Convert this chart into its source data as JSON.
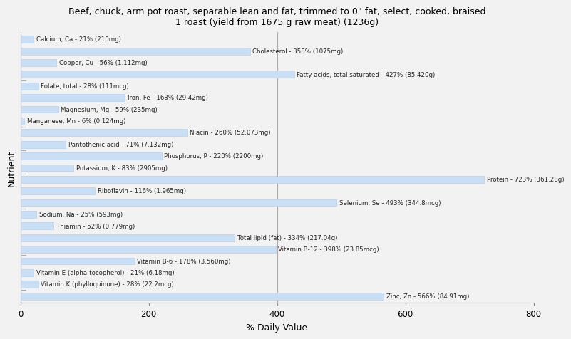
{
  "title": "Beef, chuck, arm pot roast, separable lean and fat, trimmed to 0\" fat, select, cooked, braised\n1 roast (yield from 1675 g raw meat) (1236g)",
  "xlabel": "% Daily Value",
  "ylabel": "Nutrient",
  "xlim": [
    0,
    800
  ],
  "xticks": [
    0,
    200,
    400,
    600,
    800
  ],
  "bar_color": "#c9dff5",
  "bar_edge_color": "#aec8e8",
  "background_color": "#f2f2f2",
  "plot_bg_color": "#f2f2f2",
  "text_color": "#222222",
  "vline_color": "#aaaaaa",
  "nutrients": [
    {
      "label": "Calcium, Ca - 21% (210mg)",
      "value": 21
    },
    {
      "label": "Cholesterol - 358% (1075mg)",
      "value": 358
    },
    {
      "label": "Copper, Cu - 56% (1.112mg)",
      "value": 56
    },
    {
      "label": "Fatty acids, total saturated - 427% (85.420g)",
      "value": 427
    },
    {
      "label": "Folate, total - 28% (111mcg)",
      "value": 28
    },
    {
      "label": "Iron, Fe - 163% (29.42mg)",
      "value": 163
    },
    {
      "label": "Magnesium, Mg - 59% (235mg)",
      "value": 59
    },
    {
      "label": "Manganese, Mn - 6% (0.124mg)",
      "value": 6
    },
    {
      "label": "Niacin - 260% (52.073mg)",
      "value": 260
    },
    {
      "label": "Pantothenic acid - 71% (7.132mg)",
      "value": 71
    },
    {
      "label": "Phosphorus, P - 220% (2200mg)",
      "value": 220
    },
    {
      "label": "Potassium, K - 83% (2905mg)",
      "value": 83
    },
    {
      "label": "Protein - 723% (361.28g)",
      "value": 723
    },
    {
      "label": "Riboflavin - 116% (1.965mg)",
      "value": 116
    },
    {
      "label": "Selenium, Se - 493% (344.8mcg)",
      "value": 493
    },
    {
      "label": "Sodium, Na - 25% (593mg)",
      "value": 25
    },
    {
      "label": "Thiamin - 52% (0.779mg)",
      "value": 52
    },
    {
      "label": "Total lipid (fat) - 334% (217.04g)",
      "value": 334
    },
    {
      "label": "Vitamin B-12 - 398% (23.85mcg)",
      "value": 398
    },
    {
      "label": "Vitamin B-6 - 178% (3.560mg)",
      "value": 178
    },
    {
      "label": "Vitamin E (alpha-tocopherol) - 21% (6.18mg)",
      "value": 21
    },
    {
      "label": "Vitamin K (phylloquinone) - 28% (22.2mcg)",
      "value": 28
    },
    {
      "label": "Zinc, Zn - 566% (84.91mg)",
      "value": 566
    }
  ]
}
